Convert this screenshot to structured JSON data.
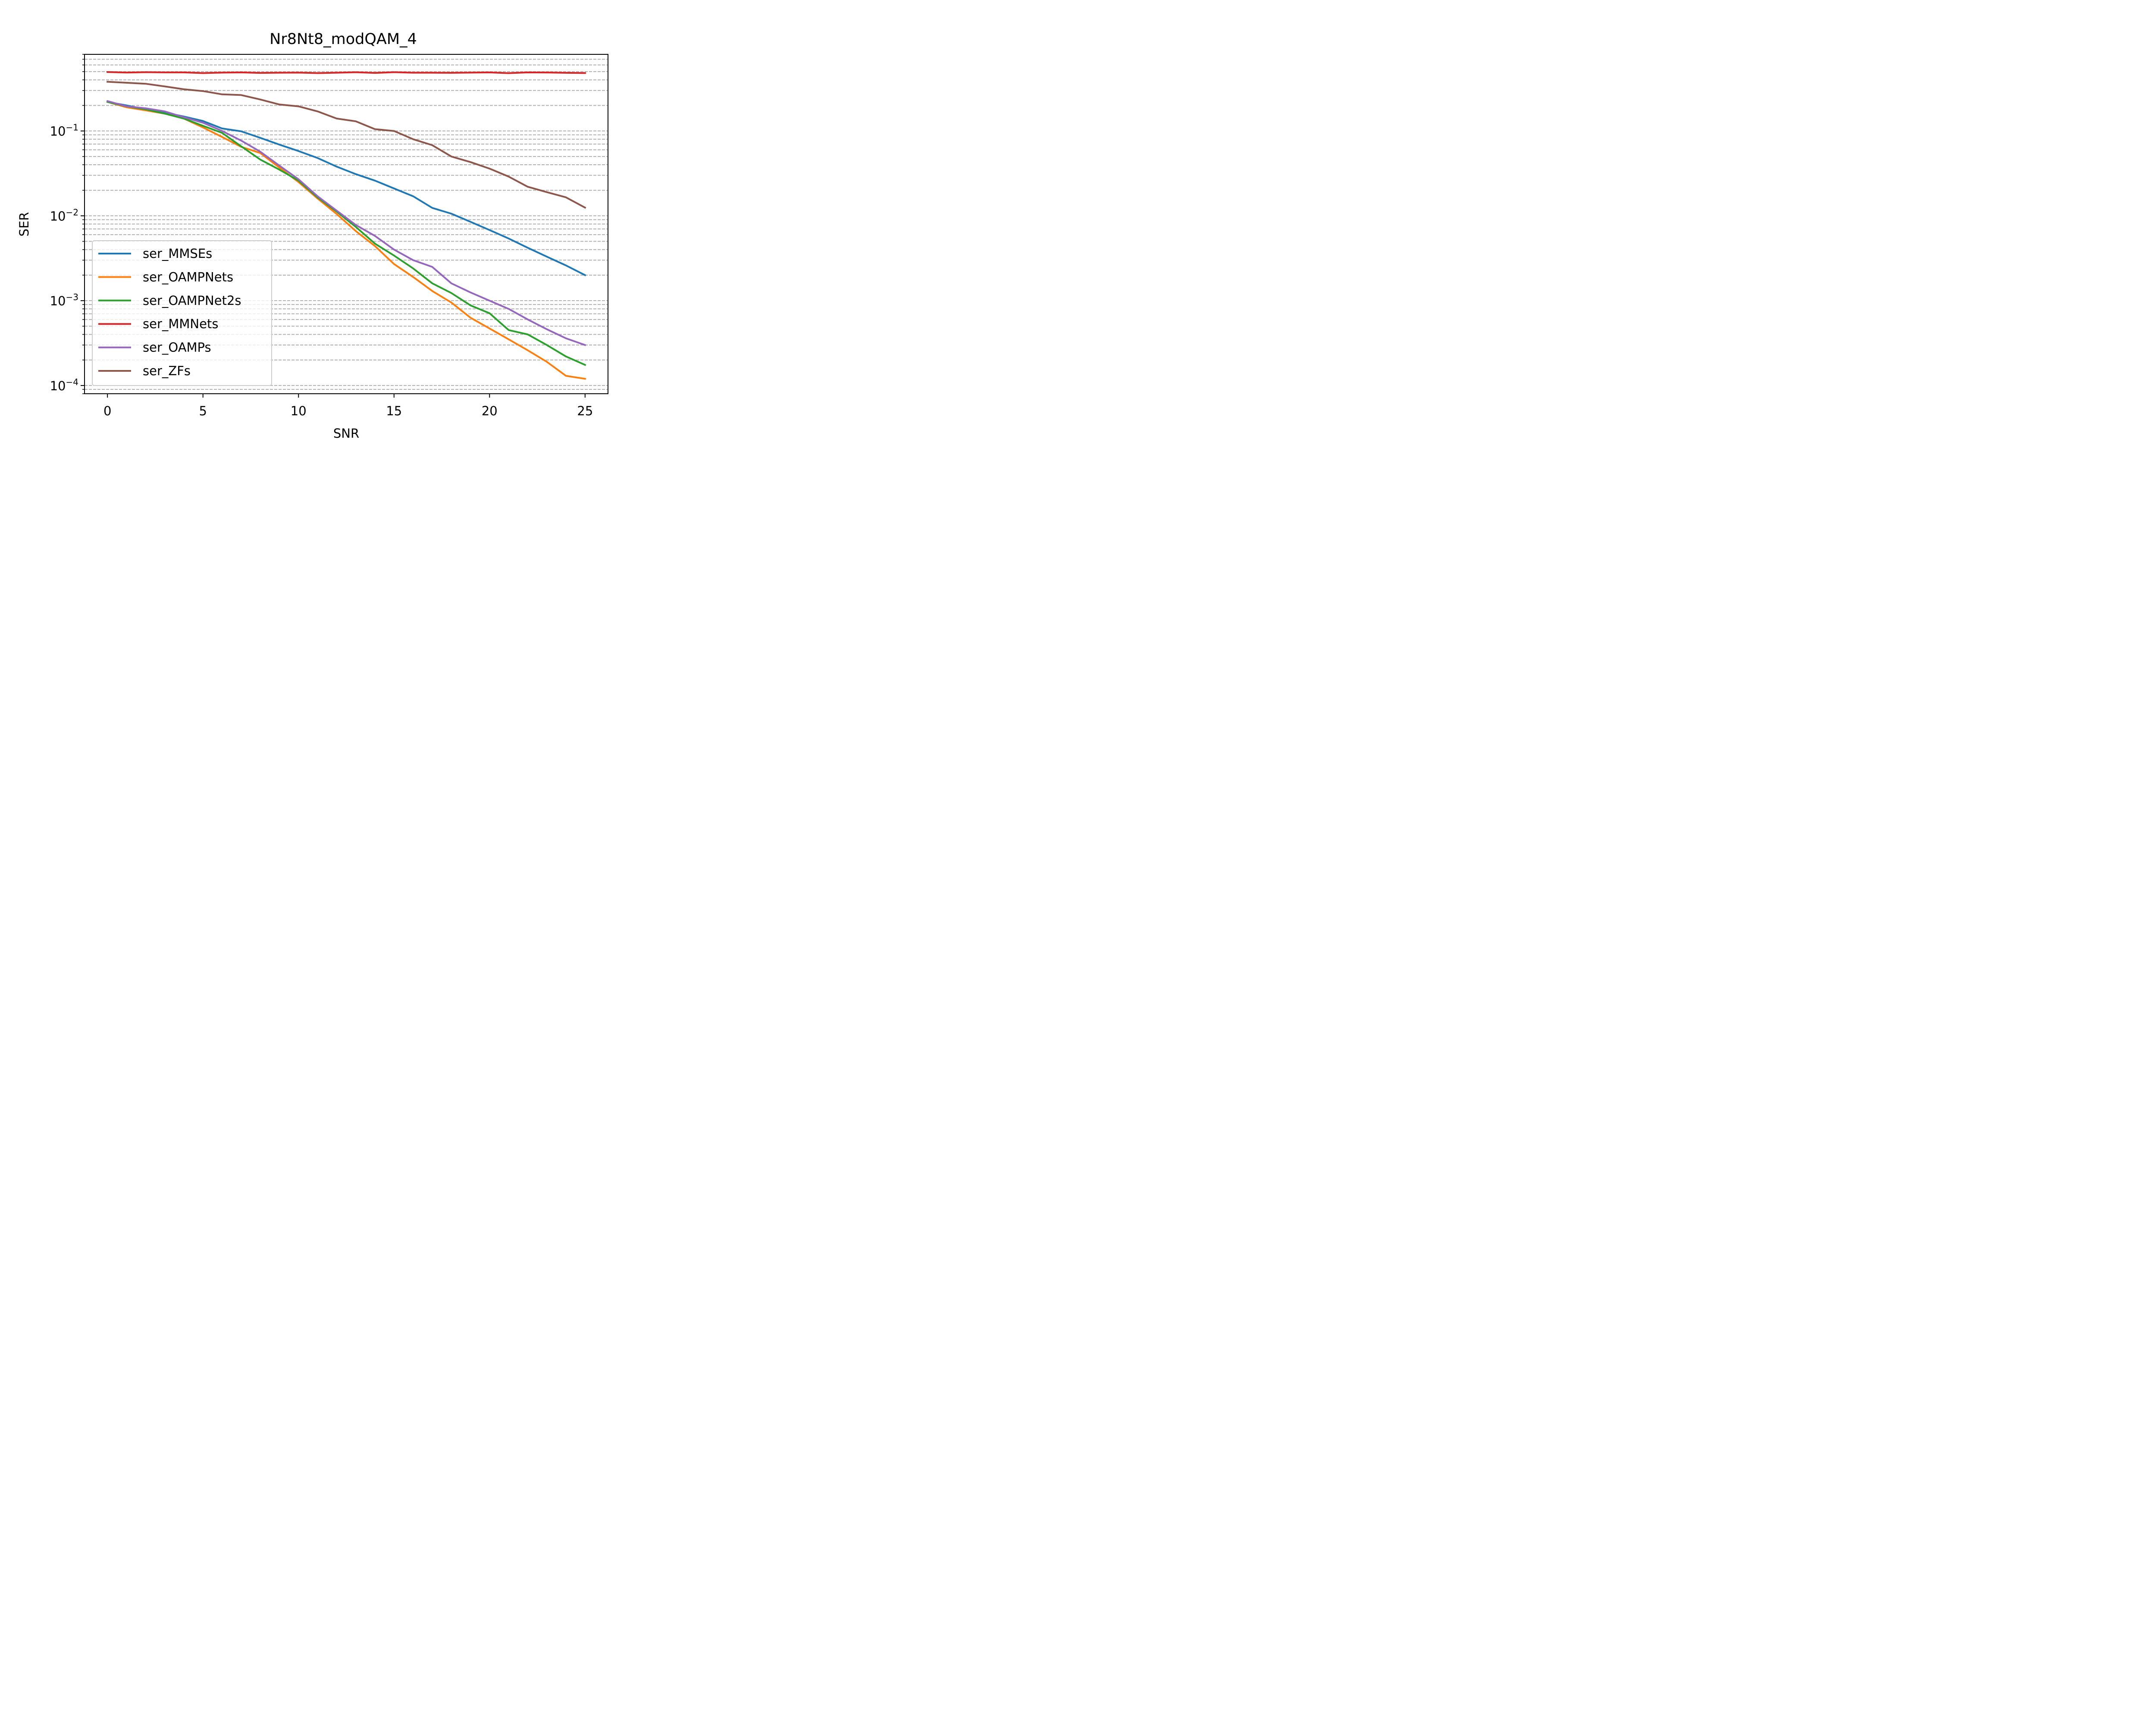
{
  "chart_data": {
    "type": "line",
    "title": "Nr8Nt8_modQAM_4",
    "xlabel": "SNR",
    "ylabel": "SER",
    "yscale": "log",
    "xlim": [
      -1.2,
      26.2
    ],
    "ylim": [
      8e-05,
      0.8
    ],
    "xticks": [
      0,
      5,
      10,
      15,
      20,
      25
    ],
    "xtick_labels": [
      "0",
      "5",
      "10",
      "15",
      "20",
      "25"
    ],
    "yticks": [
      0.0001,
      0.001,
      0.01,
      0.1
    ],
    "ytick_labels": [
      {
        "base": "10",
        "exp": "−4"
      },
      {
        "base": "10",
        "exp": "−3"
      },
      {
        "base": "10",
        "exp": "−2"
      },
      {
        "base": "10",
        "exp": "−1"
      }
    ],
    "grid": "horizontal dashed (major and minor)",
    "legend_position": "lower left",
    "x": [
      0,
      1,
      2,
      3,
      4,
      5,
      6,
      7,
      8,
      9,
      10,
      11,
      12,
      13,
      14,
      15,
      16,
      17,
      18,
      19,
      20,
      21,
      22,
      23,
      24,
      25
    ],
    "series": [
      {
        "name": "ser_MMSEs",
        "color": "#1f77b4",
        "values": [
          0.22,
          0.2,
          0.18,
          0.165,
          0.148,
          0.131,
          0.107,
          0.099,
          0.083,
          0.069,
          0.058,
          0.048,
          0.038,
          0.031,
          0.026,
          0.021,
          0.017,
          0.0124,
          0.0106,
          0.0085,
          0.0068,
          0.0054,
          0.0042,
          0.0033,
          0.0026,
          0.002
        ]
      },
      {
        "name": "ser_OAMPNets",
        "color": "#ff7f0e",
        "values": [
          0.22,
          0.19,
          0.175,
          0.16,
          0.14,
          0.11,
          0.085,
          0.065,
          0.055,
          0.037,
          0.025,
          0.016,
          0.0105,
          0.0066,
          0.0044,
          0.0027,
          0.0019,
          0.0013,
          0.00095,
          0.00063,
          0.00047,
          0.00035,
          0.00026,
          0.00019,
          0.00013,
          0.00012
        ]
      },
      {
        "name": "ser_OAMPNet2s",
        "color": "#2ca02c",
        "values": [
          0.22,
          0.195,
          0.18,
          0.16,
          0.14,
          0.115,
          0.095,
          0.066,
          0.046,
          0.035,
          0.026,
          0.0165,
          0.0112,
          0.0074,
          0.0047,
          0.0034,
          0.0024,
          0.0016,
          0.00123,
          0.00088,
          0.00071,
          0.00045,
          0.0004,
          0.0003,
          0.00022,
          0.000175
        ]
      },
      {
        "name": "ser_MMNets",
        "color": "#d62728",
        "values": [
          0.495,
          0.488,
          0.493,
          0.49,
          0.49,
          0.481,
          0.487,
          0.49,
          0.483,
          0.486,
          0.487,
          0.481,
          0.486,
          0.492,
          0.483,
          0.493,
          0.486,
          0.486,
          0.484,
          0.487,
          0.49,
          0.48,
          0.49,
          0.489,
          0.484,
          0.482
        ]
      },
      {
        "name": "ser_OAMPs",
        "color": "#9467bd",
        "values": [
          0.225,
          0.195,
          0.185,
          0.17,
          0.145,
          0.125,
          0.1,
          0.077,
          0.057,
          0.039,
          0.027,
          0.017,
          0.0115,
          0.0078,
          0.0058,
          0.004,
          0.003,
          0.0025,
          0.0016,
          0.00125,
          0.001,
          0.0008,
          0.0006,
          0.00046,
          0.00036,
          0.0003
        ]
      },
      {
        "name": "ser_ZFs",
        "color": "#8c564b",
        "values": [
          0.38,
          0.37,
          0.36,
          0.335,
          0.31,
          0.295,
          0.27,
          0.265,
          0.235,
          0.205,
          0.195,
          0.17,
          0.14,
          0.13,
          0.105,
          0.1,
          0.08,
          0.068,
          0.05,
          0.043,
          0.036,
          0.029,
          0.022,
          0.019,
          0.0165,
          0.0125
        ]
      }
    ]
  }
}
